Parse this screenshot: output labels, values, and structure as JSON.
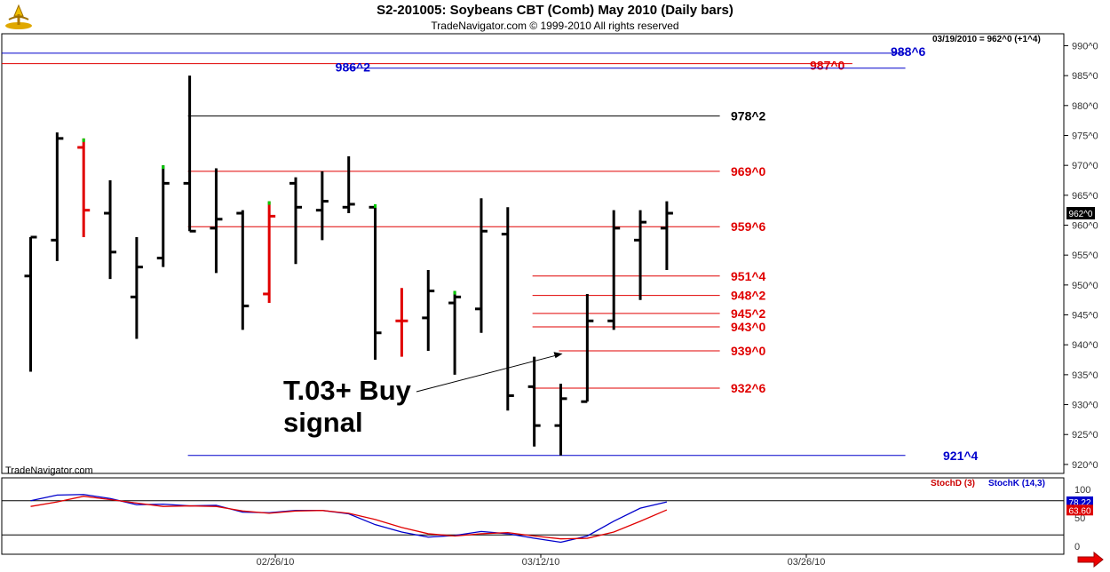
{
  "window": {
    "title": "S2-201005:  Soybeans CBT (Comb) May 2010  (Daily bars)",
    "subtitle": "TradeNavigator.com © 1999-2010 All rights reserved",
    "watermark": "TradeNavigator.com",
    "last_price_readout": "03/19/2010 = 962^0 (+1^4)",
    "current_price_tag": "962^0"
  },
  "colors": {
    "red": "#e00000",
    "blue": "#0000cc",
    "black": "#000000",
    "green": "#00cc00",
    "stochK": "#0000cc",
    "stochD": "#cc0000"
  },
  "chart_data": [
    {
      "type": "ohlc",
      "y_tick_labels": [
        "990^0",
        "985^0",
        "980^0",
        "975^0",
        "970^0",
        "965^0",
        "960^0",
        "955^0",
        "950^0",
        "945^0",
        "940^0",
        "935^0",
        "930^0",
        "925^0",
        "920^0"
      ],
      "x_tick_labels": [
        "02/26/10",
        "03/12/10",
        "03/26/10"
      ],
      "ylim": [
        918.5,
        992
      ],
      "bars": [
        {
          "high": 958.0,
          "low": 935.5,
          "open": 951.5,
          "close": 958.0,
          "color": "black"
        },
        {
          "high": 975.5,
          "low": 954.0,
          "open": 957.5,
          "close": 974.5,
          "color": "black"
        },
        {
          "high": 974.5,
          "low": 958.0,
          "open": 973.0,
          "close": 962.5,
          "color": "red",
          "tip": "green"
        },
        {
          "high": 967.5,
          "low": 951.0,
          "open": 962.0,
          "close": 955.5,
          "color": "black"
        },
        {
          "high": 958.0,
          "low": 941.0,
          "open": 948.0,
          "close": 953.0,
          "color": "black"
        },
        {
          "high": 970.0,
          "low": 953.0,
          "open": 954.5,
          "close": 967.0,
          "color": "black",
          "tip": "green"
        },
        {
          "high": 985.0,
          "low": 959.0,
          "open": 967.0,
          "close": 959.0,
          "color": "black"
        },
        {
          "high": 969.5,
          "low": 952.0,
          "open": 959.5,
          "close": 961.0,
          "color": "black"
        },
        {
          "high": 962.5,
          "low": 942.5,
          "open": 962.0,
          "close": 946.5,
          "color": "black"
        },
        {
          "high": 964.0,
          "low": 947.0,
          "open": 948.5,
          "close": 961.5,
          "color": "red",
          "tip": "green"
        },
        {
          "high": 968.0,
          "low": 953.5,
          "open": 967.0,
          "close": 963.0,
          "color": "black"
        },
        {
          "high": 969.0,
          "low": 957.5,
          "open": 962.5,
          "close": 964.0,
          "color": "black"
        },
        {
          "high": 971.5,
          "low": 962.0,
          "open": 963.0,
          "close": 963.5,
          "color": "black"
        },
        {
          "high": 963.5,
          "low": 937.5,
          "open": 963.0,
          "close": 942.0,
          "color": "black",
          "tip": "green"
        },
        {
          "high": 949.5,
          "low": 938.0,
          "open": 944.0,
          "close": 944.0,
          "color": "red"
        },
        {
          "high": 952.5,
          "low": 939.0,
          "open": 944.5,
          "close": 949.0,
          "color": "black"
        },
        {
          "high": 949.0,
          "low": 935.0,
          "open": 947.0,
          "close": 948.0,
          "color": "black",
          "tip": "green"
        },
        {
          "high": 964.5,
          "low": 942.0,
          "open": 946.0,
          "close": 959.0,
          "color": "black"
        },
        {
          "high": 963.0,
          "low": 929.0,
          "open": 958.5,
          "close": 931.5,
          "color": "black"
        },
        {
          "high": 938.0,
          "low": 923.0,
          "open": 933.0,
          "close": 926.5,
          "color": "black"
        },
        {
          "high": 933.5,
          "low": 921.5,
          "open": 926.5,
          "close": 931.0,
          "color": "black"
        },
        {
          "high": 948.5,
          "low": 930.5,
          "open": 930.5,
          "close": 944.0,
          "color": "black"
        },
        {
          "high": 962.5,
          "low": 942.5,
          "open": 944.0,
          "close": 959.5,
          "color": "black"
        },
        {
          "high": 962.5,
          "low": 947.5,
          "open": 957.5,
          "close": 960.5,
          "color": "black"
        },
        {
          "high": 964.0,
          "low": 952.5,
          "open": 959.5,
          "close": 962.0,
          "color": "black"
        }
      ],
      "horizontal_levels": [
        {
          "label": "988^6",
          "value": 988.75,
          "color": "blue",
          "from_bar": -12,
          "to_bar": 33
        },
        {
          "label": "987^0",
          "value": 987.0,
          "color": "red",
          "from_bar": -12,
          "to_bar": 31
        },
        {
          "label": "986^2",
          "value": 986.25,
          "color": "blue",
          "from_bar": 12,
          "to_bar": 33
        },
        {
          "label": "978^2",
          "value": 978.25,
          "color": "black",
          "from_bar": 6,
          "to_bar": 26
        },
        {
          "label": "969^0",
          "value": 969.0,
          "color": "red",
          "from_bar": 6,
          "to_bar": 26
        },
        {
          "label": "959^6",
          "value": 959.75,
          "color": "red",
          "from_bar": 6,
          "to_bar": 26
        },
        {
          "label": "951^4",
          "value": 951.5,
          "color": "red",
          "from_bar": 19,
          "to_bar": 26
        },
        {
          "label": "948^2",
          "value": 948.25,
          "color": "red",
          "from_bar": 19,
          "to_bar": 26
        },
        {
          "label": "945^2",
          "value": 945.25,
          "color": "red",
          "from_bar": 19,
          "to_bar": 26
        },
        {
          "label": "943^0",
          "value": 943.0,
          "color": "red",
          "from_bar": 19,
          "to_bar": 26
        },
        {
          "label": "939^0",
          "value": 939.0,
          "color": "red",
          "from_bar": 20,
          "to_bar": 26
        },
        {
          "label": "932^6",
          "value": 932.75,
          "color": "red",
          "from_bar": 19,
          "to_bar": 26
        },
        {
          "label": "921^4",
          "value": 921.5,
          "color": "blue",
          "from_bar": 6,
          "to_bar": 33
        }
      ],
      "annotation": {
        "text_line1": "T.03+ Buy",
        "text_line2": "signal",
        "arrow_to_bar": 20,
        "arrow_to_value": 938.5
      }
    },
    {
      "type": "line",
      "legend": [
        "StochD (3)",
        "StochK (14,3)"
      ],
      "y_tick_labels": [
        "100",
        "50",
        "0"
      ],
      "ylim": [
        0,
        100
      ],
      "reference_lines": [
        80,
        20
      ],
      "value_tags": [
        "78.22",
        "63.60"
      ],
      "series": [
        {
          "name": "StochK (14,3)",
          "color": "blue",
          "values": [
            80,
            90,
            91,
            84,
            73,
            74,
            71,
            72,
            60,
            59,
            63,
            63,
            57,
            38,
            25,
            16,
            19,
            26,
            22,
            14,
            7,
            18,
            44,
            67,
            78
          ]
        },
        {
          "name": "StochD (3)",
          "color": "red",
          "values": [
            70,
            78,
            88,
            82,
            76,
            70,
            71,
            70,
            62,
            58,
            62,
            63,
            58,
            47,
            33,
            22,
            18,
            22,
            24,
            18,
            13,
            14,
            25,
            44,
            64
          ]
        }
      ]
    }
  ]
}
